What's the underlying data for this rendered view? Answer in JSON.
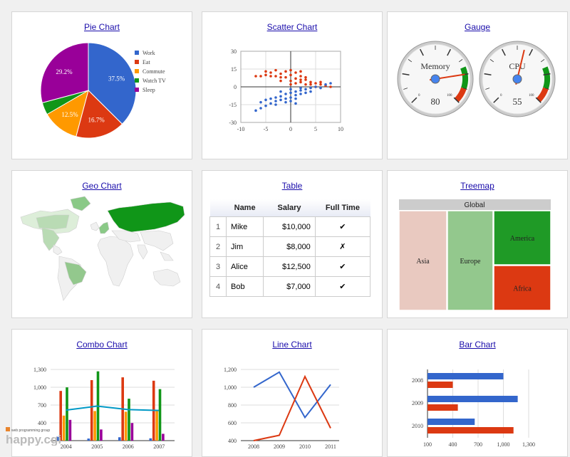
{
  "cards": {
    "pie": {
      "title": "Pie Chart"
    },
    "scatter": {
      "title": "Scatter Chart"
    },
    "gauge": {
      "title": "Gauge"
    },
    "geo": {
      "title": "Geo Chart"
    },
    "table": {
      "title": "Table"
    },
    "treemap": {
      "title": "Treemap"
    },
    "combo": {
      "title": "Combo Chart"
    },
    "line": {
      "title": "Line Chart"
    },
    "bar": {
      "title": "Bar Chart"
    }
  },
  "chart_data": [
    {
      "type": "pie",
      "categories": [
        "Work",
        "Eat",
        "Commute",
        "Watch TV",
        "Sleep"
      ],
      "values": [
        37.5,
        16.7,
        12.5,
        4.2,
        29.2
      ],
      "labels": [
        "37.5%",
        "16.7%",
        "12.5%",
        "",
        "29.2%"
      ],
      "colors": [
        "#3366cc",
        "#dc3912",
        "#ff9900",
        "#109618",
        "#990099"
      ],
      "legend": "right"
    },
    {
      "type": "scatter",
      "xlim": [
        -10,
        10
      ],
      "ylim": [
        -30,
        30
      ],
      "xticks": [
        "-10",
        "-5",
        "0",
        "5",
        "10"
      ],
      "yticks": [
        "30",
        "15",
        "0",
        "-15",
        "-30"
      ],
      "series": [
        {
          "color": "#dc3912",
          "points": [
            [
              -5,
              10
            ],
            [
              -4,
              12
            ],
            [
              -3,
              9
            ],
            [
              -2,
              11
            ],
            [
              -1,
              8
            ],
            [
              0,
              10
            ],
            [
              1,
              7
            ],
            [
              2,
              9
            ],
            [
              3,
              6
            ],
            [
              4,
              4
            ],
            [
              -6,
              9
            ],
            [
              -3,
              14
            ],
            [
              -2,
              5
            ],
            [
              0,
              5
            ],
            [
              1,
              12
            ],
            [
              2,
              4
            ],
            [
              3,
              2
            ],
            [
              5,
              3
            ],
            [
              6,
              2
            ],
            [
              7,
              1
            ],
            [
              8,
              0
            ],
            [
              -1,
              13
            ],
            [
              0,
              14
            ],
            [
              1,
              3
            ],
            [
              2,
              13
            ],
            [
              4,
              2
            ],
            [
              -4,
              9
            ],
            [
              -2,
              8
            ],
            [
              3,
              8
            ],
            [
              6,
              4
            ],
            [
              -5,
              13
            ],
            [
              -7,
              9
            ],
            [
              0,
              2
            ],
            [
              2,
              6
            ],
            [
              5,
              0
            ]
          ]
        },
        {
          "color": "#3366cc",
          "points": [
            [
              -6,
              -13
            ],
            [
              -5,
              -11
            ],
            [
              -4,
              -10
            ],
            [
              -3,
              -9
            ],
            [
              -2,
              -8
            ],
            [
              -1,
              -6
            ],
            [
              0,
              -5
            ],
            [
              1,
              -4
            ],
            [
              2,
              -3
            ],
            [
              3,
              -2
            ],
            [
              -4,
              -14
            ],
            [
              -3,
              -12
            ],
            [
              -2,
              -11
            ],
            [
              -1,
              -10
            ],
            [
              0,
              -9
            ],
            [
              1,
              -7
            ],
            [
              2,
              -6
            ],
            [
              -5,
              -16
            ],
            [
              -6,
              -18
            ],
            [
              0,
              -12
            ],
            [
              1,
              -10
            ],
            [
              3,
              -5
            ],
            [
              4,
              -1
            ],
            [
              5,
              0
            ],
            [
              7,
              2
            ],
            [
              8,
              3
            ],
            [
              -2,
              -4
            ],
            [
              0,
              -2
            ],
            [
              2,
              -1
            ],
            [
              -1,
              -13
            ],
            [
              -3,
              -15
            ],
            [
              1,
              -14
            ],
            [
              4,
              -4
            ],
            [
              6,
              -1
            ],
            [
              -7,
              -20
            ]
          ]
        }
      ]
    },
    {
      "type": "gauge",
      "series": [
        {
          "name": "Memory",
          "value": 80,
          "max": 100
        },
        {
          "name": "CPU",
          "value": 55,
          "max": 100
        }
      ],
      "ranges": {
        "green": [
          75,
          90
        ],
        "orange": [
          90,
          100
        ]
      }
    },
    {
      "type": "geo",
      "highlight": [
        "Russia",
        "United States",
        "Brazil",
        "Canada",
        "Greenland",
        "Germany"
      ]
    },
    {
      "type": "table",
      "columns": [
        "Name",
        "Salary",
        "Full Time"
      ],
      "rows": [
        [
          "1",
          "Mike",
          "$10,000",
          "✔"
        ],
        [
          "2",
          "Jim",
          "$8,000",
          "✗"
        ],
        [
          "3",
          "Alice",
          "$12,500",
          "✔"
        ],
        [
          "4",
          "Bob",
          "$7,000",
          "✔"
        ]
      ]
    },
    {
      "type": "treemap",
      "root": "Global",
      "nodes": [
        {
          "name": "Asia",
          "color": "#e9c9c0"
        },
        {
          "name": "Europe",
          "color": "#93c88d"
        },
        {
          "name": "America",
          "color": "#1f9a26"
        },
        {
          "name": "Africa",
          "color": "#dc3912"
        }
      ]
    },
    {
      "type": "bar",
      "subtype": "combo",
      "categories": [
        "2004",
        "2005",
        "2006",
        "2007"
      ],
      "yticks": [
        "1,300",
        "1,000",
        "700",
        "400"
      ],
      "ylim": [
        100,
        1300
      ],
      "series": [
        {
          "color": "#3366cc",
          "values": [
            165,
            135,
            157,
            139
          ]
        },
        {
          "color": "#dc3912",
          "values": [
            938,
            1120,
            1167,
            1110
          ]
        },
        {
          "color": "#ff9900",
          "values": [
            522,
            599,
            587,
            615
          ]
        },
        {
          "color": "#109618",
          "values": [
            998,
            1268,
            807,
            968
          ]
        },
        {
          "color": "#990099",
          "values": [
            450,
            288,
            397,
            215
          ]
        }
      ],
      "line": {
        "color": "#0099c6",
        "values": [
          614,
          682,
          623,
          609
        ]
      }
    },
    {
      "type": "line",
      "categories": [
        "2008",
        "2009",
        "2010",
        "2011"
      ],
      "yticks": [
        "1,200",
        "1,000",
        "800",
        "600",
        "400"
      ],
      "ylim": [
        400,
        1200
      ],
      "series": [
        {
          "color": "#3366cc",
          "values": [
            1000,
            1170,
            660,
            1030
          ]
        },
        {
          "color": "#dc3912",
          "values": [
            400,
            460,
            1120,
            540
          ]
        }
      ]
    },
    {
      "type": "bar",
      "orientation": "horizontal",
      "categories": [
        "2008",
        "2009",
        "2010"
      ],
      "xticks": [
        "100",
        "400",
        "700",
        "1,000",
        "1,300"
      ],
      "xlim": [
        100,
        1300
      ],
      "series": [
        {
          "color": "#3366cc",
          "values": [
            1000,
            1170,
            660
          ]
        },
        {
          "color": "#dc3912",
          "values": [
            400,
            460,
            1120
          ]
        }
      ]
    }
  ]
}
